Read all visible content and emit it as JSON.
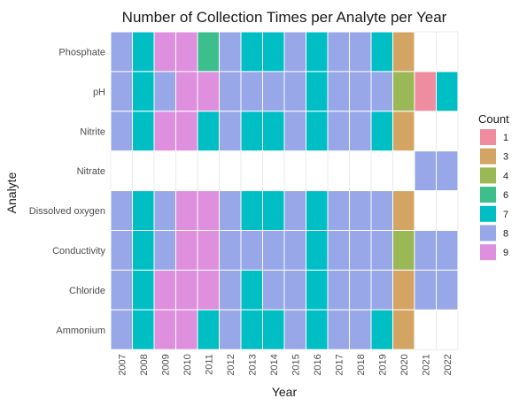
{
  "chart_data": {
    "type": "heatmap",
    "title": "Number of Collection Times per Analyte per Year",
    "xlabel": "Year",
    "ylabel": "Analyte",
    "x": [
      "2007",
      "2008",
      "2009",
      "2010",
      "2011",
      "2012",
      "2013",
      "2014",
      "2015",
      "2016",
      "2017",
      "2018",
      "2019",
      "2020",
      "2021",
      "2022"
    ],
    "y": [
      "Phosphate",
      "pH",
      "Nitrite",
      "Nitrate",
      "Dissolved oxygen",
      "Conductivity",
      "Chloride",
      "Ammonium"
    ],
    "values": [
      [
        8,
        7,
        9,
        9,
        6,
        8,
        7,
        7,
        8,
        7,
        8,
        8,
        7,
        3,
        null,
        null
      ],
      [
        8,
        7,
        8,
        9,
        9,
        8,
        8,
        8,
        8,
        7,
        8,
        8,
        8,
        4,
        1,
        7
      ],
      [
        8,
        7,
        9,
        9,
        7,
        8,
        7,
        7,
        8,
        7,
        8,
        8,
        7,
        3,
        null,
        null
      ],
      [
        null,
        null,
        null,
        null,
        null,
        null,
        null,
        null,
        null,
        null,
        null,
        null,
        null,
        null,
        8,
        8
      ],
      [
        8,
        7,
        8,
        9,
        9,
        8,
        7,
        7,
        8,
        7,
        8,
        8,
        8,
        3,
        null,
        null
      ],
      [
        8,
        7,
        8,
        9,
        9,
        8,
        8,
        8,
        8,
        7,
        8,
        8,
        8,
        4,
        8,
        8
      ],
      [
        8,
        7,
        9,
        9,
        9,
        8,
        7,
        8,
        8,
        7,
        8,
        8,
        8,
        3,
        8,
        8
      ],
      [
        8,
        7,
        9,
        9,
        7,
        8,
        7,
        7,
        8,
        7,
        8,
        8,
        7,
        3,
        null,
        null
      ]
    ],
    "legend": {
      "title": "Count",
      "position": "right",
      "items": [
        {
          "label": "1",
          "value": 1,
          "color": "#f08ca0"
        },
        {
          "label": "3",
          "value": 3,
          "color": "#d4a463"
        },
        {
          "label": "4",
          "value": 4,
          "color": "#9ab855"
        },
        {
          "label": "6",
          "value": 6,
          "color": "#3cbf8c"
        },
        {
          "label": "7",
          "value": 7,
          "color": "#00bfc4"
        },
        {
          "label": "8",
          "value": 8,
          "color": "#97a7e8"
        },
        {
          "label": "9",
          "value": 9,
          "color": "#de8fde"
        }
      ]
    },
    "grid": true
  }
}
